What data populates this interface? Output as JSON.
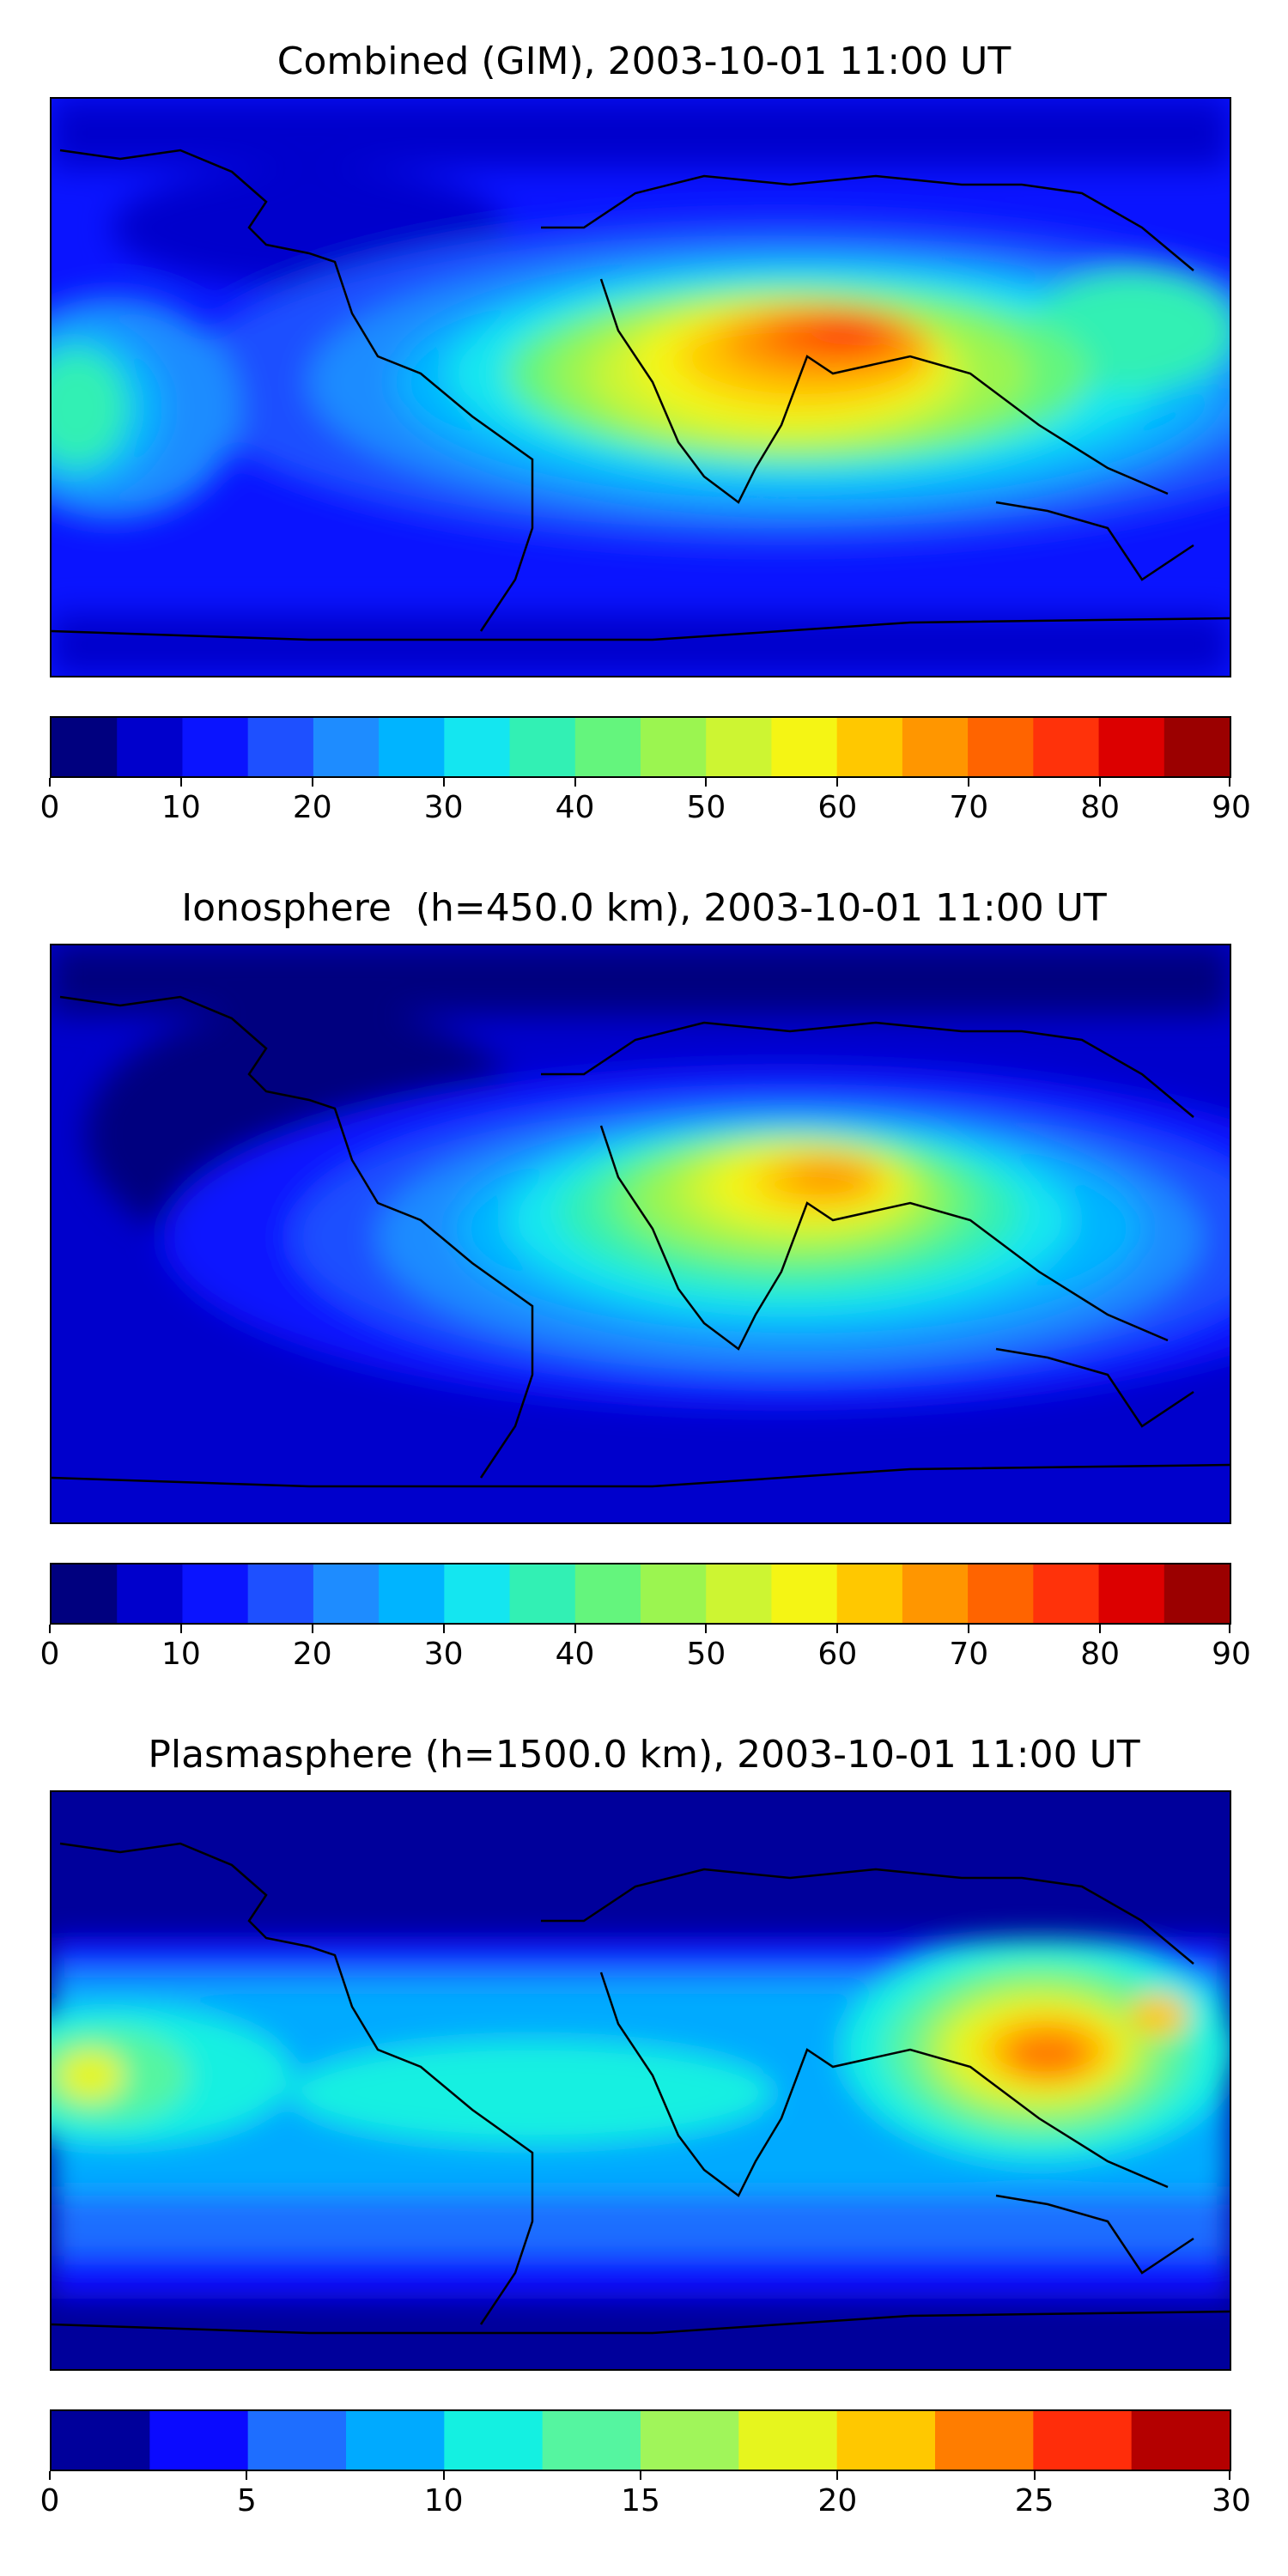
{
  "panels": [
    {
      "title": "Combined (GIM), 2003-10-01 11:00 UT",
      "colorbar": {
        "ticks": [
          "0",
          "10",
          "20",
          "30",
          "40",
          "50",
          "60",
          "70",
          "80",
          "90"
        ],
        "levels": [
          "#00007f",
          "#0000cc",
          "#0a14ff",
          "#1e50ff",
          "#1e8cff",
          "#00b4ff",
          "#14e6f0",
          "#32f0b4",
          "#64f57d",
          "#9bf550",
          "#cdf532",
          "#f5f514",
          "#ffc800",
          "#ff9600",
          "#ff6400",
          "#ff320a",
          "#dc0000",
          "#9b0000"
        ]
      }
    },
    {
      "title": "Ionosphere  (h=450.0 km), 2003-10-01 11:00 UT",
      "colorbar": {
        "ticks": [
          "0",
          "10",
          "20",
          "30",
          "40",
          "50",
          "60",
          "70",
          "80",
          "90"
        ],
        "levels": [
          "#00007f",
          "#0000cc",
          "#0a14ff",
          "#1e50ff",
          "#1e8cff",
          "#00b4ff",
          "#14e6f0",
          "#32f0b4",
          "#64f57d",
          "#9bf550",
          "#cdf532",
          "#f5f514",
          "#ffc800",
          "#ff9600",
          "#ff6400",
          "#ff320a",
          "#dc0000",
          "#9b0000"
        ]
      }
    },
    {
      "title": "Plasmasphere (h=1500.0 km), 2003-10-01 11:00 UT",
      "colorbar": {
        "ticks": [
          "0",
          "5",
          "10",
          "15",
          "20",
          "25",
          "30"
        ],
        "levels": [
          "#00009b",
          "#0a0aff",
          "#1e6eff",
          "#00aaff",
          "#14f0e1",
          "#55f5a0",
          "#a0f55a",
          "#e6f51e",
          "#ffc800",
          "#ff7d00",
          "#ff2d0a",
          "#b40000"
        ]
      }
    }
  ]
}
